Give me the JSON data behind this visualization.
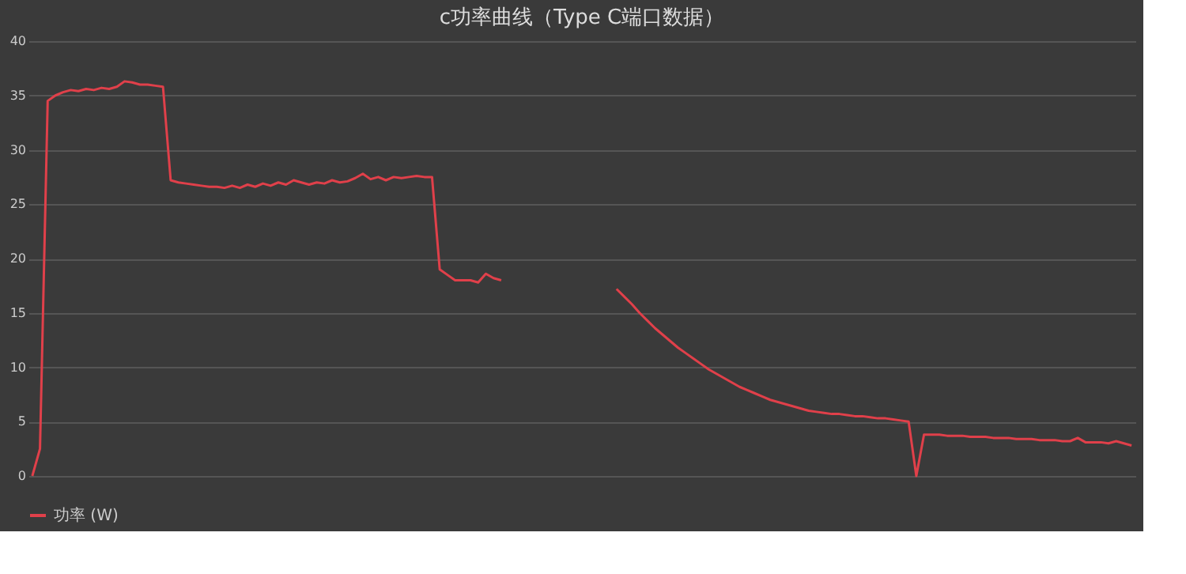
{
  "chart_data": {
    "type": "line",
    "title": "c功率曲线（Type C端口数据）",
    "categories": [
      null,
      null,
      null,
      null,
      null,
      null,
      null,
      null,
      null,
      null,
      null,
      null,
      null,
      null,
      null,
      null,
      null,
      null,
      null,
      null,
      null,
      null,
      null,
      null,
      null,
      null,
      null,
      null,
      null,
      null,
      null,
      null,
      null,
      null,
      null,
      null,
      null,
      null,
      null,
      null,
      null,
      null,
      null,
      null,
      null,
      null,
      null,
      null,
      null,
      null,
      null,
      null,
      null,
      null,
      null,
      null,
      null,
      null,
      null,
      null,
      null,
      null,
      null,
      null,
      null,
      null,
      null,
      null,
      null,
      null,
      null,
      null,
      null,
      null,
      null,
      null,
      null,
      null,
      null,
      null,
      null,
      null,
      null,
      null,
      null,
      null,
      null,
      null,
      null,
      null,
      null,
      null,
      null,
      null,
      null,
      null,
      null,
      null,
      null,
      null,
      null,
      null,
      null,
      null,
      null,
      null,
      null,
      null,
      null,
      null,
      null,
      null,
      null,
      null,
      null,
      null,
      null,
      null,
      null,
      null,
      null,
      null,
      null,
      null,
      null,
      null,
      null,
      null,
      null,
      null,
      null,
      null,
      null,
      null,
      null,
      null,
      null,
      null,
      null,
      null,
      null,
      null,
      null,
      null
    ],
    "series": [
      {
        "name": "功率 (W)",
        "color": "#e0404a",
        "values": [
          0,
          2.5,
          34.5,
          35,
          35.3,
          35.5,
          35.4,
          35.6,
          35.5,
          35.7,
          35.6,
          35.8,
          36.3,
          36.2,
          36,
          36,
          35.9,
          35.8,
          27.2,
          27,
          26.9,
          26.8,
          26.7,
          26.6,
          26.6,
          26.5,
          26.7,
          26.5,
          26.8,
          26.6,
          26.9,
          26.7,
          27,
          26.8,
          27.2,
          27,
          26.8,
          27,
          26.9,
          27.2,
          27,
          27.1,
          27.4,
          27.8,
          27.3,
          27.5,
          27.2,
          27.5,
          27.4,
          27.5,
          27.6,
          27.5,
          27.5,
          19,
          18.5,
          18,
          18,
          18,
          17.8,
          18.6,
          18.2,
          18,
          null,
          null,
          null,
          null,
          null,
          null,
          null,
          null,
          null,
          null,
          null,
          null,
          null,
          null,
          17.2,
          16.5,
          15.8,
          15,
          14.3,
          13.6,
          13,
          12.4,
          11.8,
          11.3,
          10.8,
          10.3,
          9.8,
          9.4,
          9,
          8.6,
          8.2,
          7.9,
          7.6,
          7.3,
          7.0,
          6.8,
          6.6,
          6.4,
          6.2,
          6.0,
          5.9,
          5.8,
          5.7,
          5.7,
          5.6,
          5.5,
          5.5,
          5.4,
          5.3,
          5.3,
          5.2,
          5.1,
          5.0,
          0,
          3.8,
          3.8,
          3.8,
          3.7,
          3.7,
          3.7,
          3.6,
          3.6,
          3.6,
          3.5,
          3.5,
          3.5,
          3.4,
          3.4,
          3.4,
          3.3,
          3.3,
          3.3,
          3.2,
          3.2,
          3.5,
          3.1,
          3.1,
          3.1,
          3.0,
          3.2,
          3.0,
          2.8
        ]
      }
    ],
    "ylim": [
      0,
      40
    ],
    "yticks": [
      0,
      5,
      10,
      15,
      20,
      25,
      30,
      35,
      40
    ],
    "grid": "y",
    "legend": "bottom",
    "tick_labels": "y",
    "marker": "none",
    "line_style": "solid"
  }
}
